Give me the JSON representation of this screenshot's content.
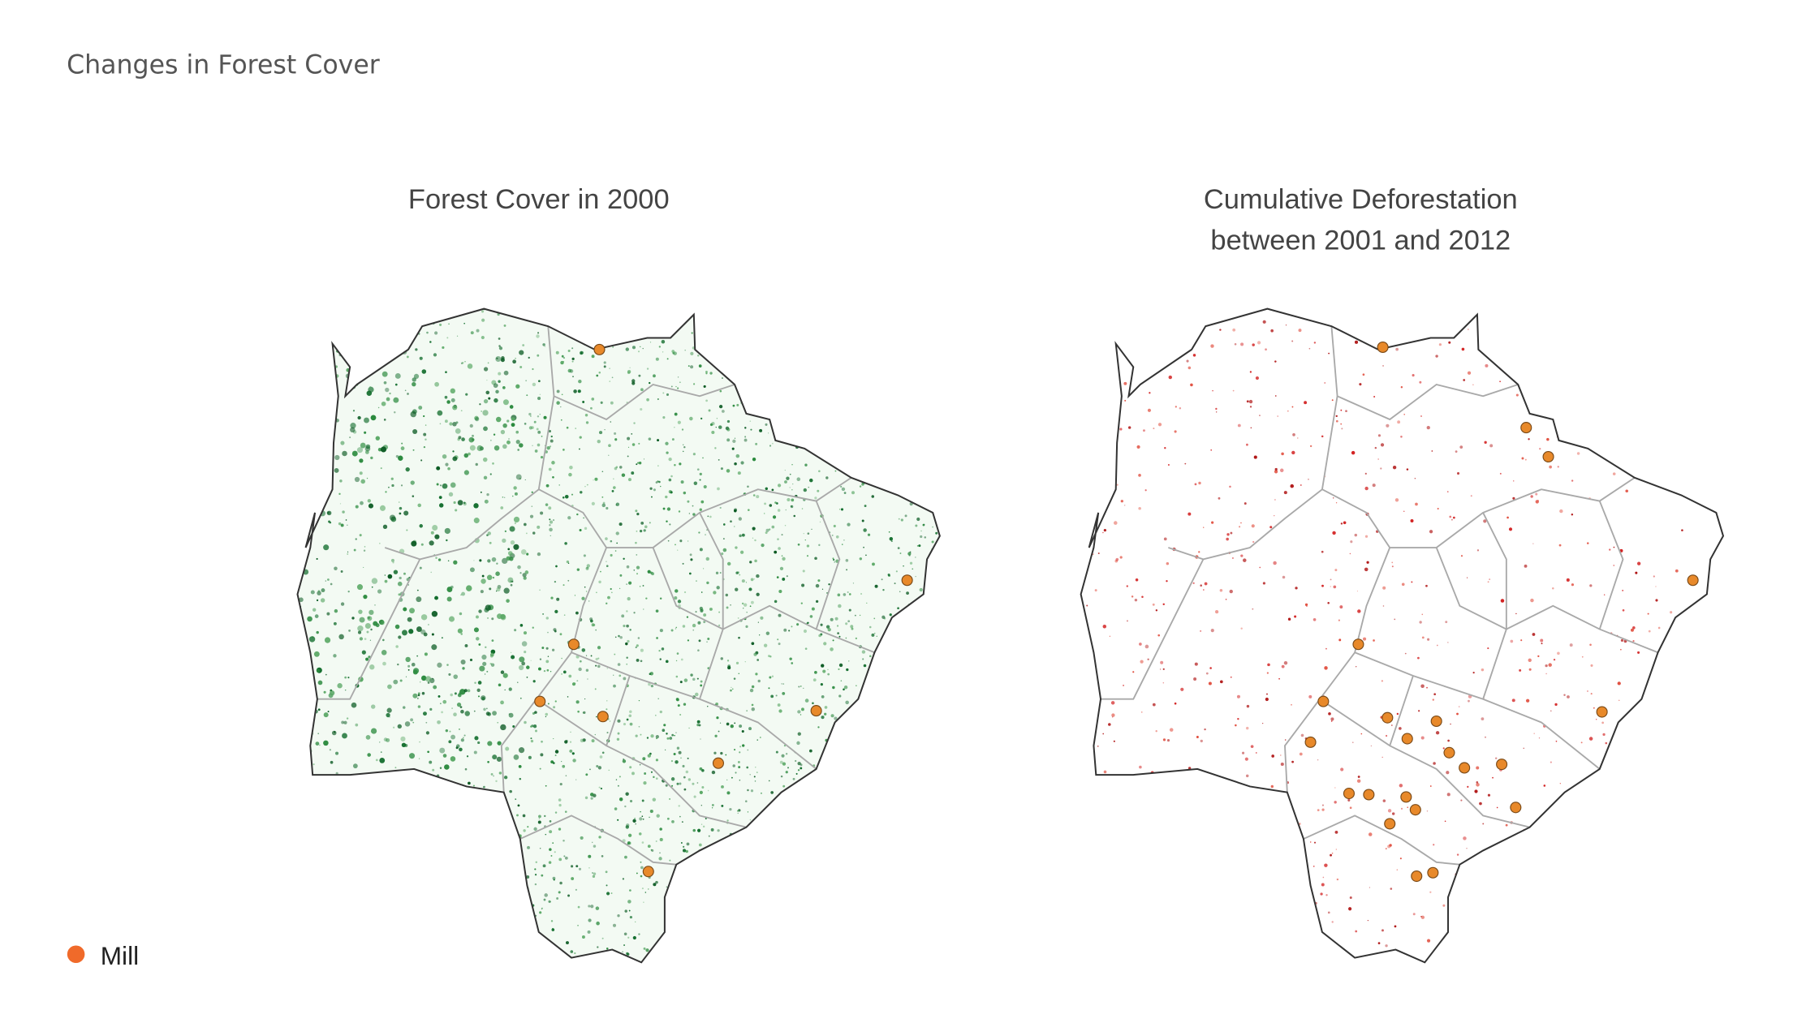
{
  "header": {
    "title": "Changes in Forest Cover"
  },
  "panels": [
    {
      "title": "Forest Cover in 2000"
    },
    {
      "title_lines": [
        "Cumulative Deforestation",
        "between 2001 and 2012"
      ]
    }
  ],
  "legend": {
    "label": "Mill"
  }
}
